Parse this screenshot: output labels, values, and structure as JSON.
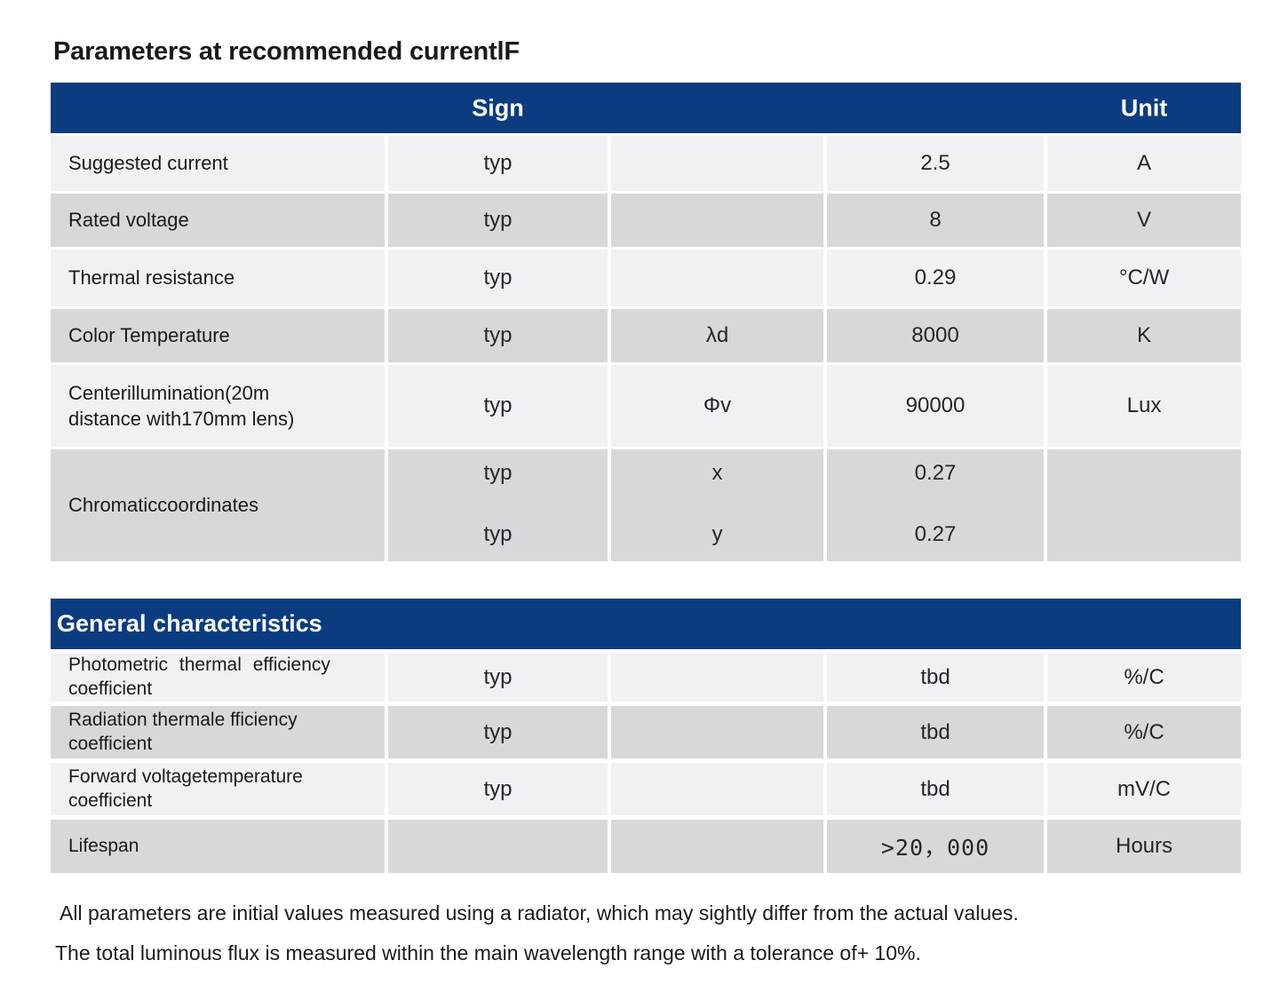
{
  "title": "Parameters at recommended currentlF",
  "colors": {
    "header_blue": "#0c3c80",
    "row_light": "#f1f1f4",
    "row_dark": "#d8d8da"
  },
  "table1": {
    "sign_header": "Sign",
    "unit_header": "Unit",
    "rows": [
      {
        "name": "Suggested current",
        "sign": "typ",
        "symbol": "",
        "value": "2.5",
        "unit": "A"
      },
      {
        "name": "Rated voltage",
        "sign": "typ",
        "symbol": "",
        "value": "8",
        "unit": "V"
      },
      {
        "name": "Thermal resistance",
        "sign": "typ",
        "symbol": "",
        "value": "0.29",
        "unit": "°C/W"
      },
      {
        "name": "Color Temperature",
        "sign": "typ",
        "symbol": "λd",
        "value": "8000",
        "unit": "K"
      },
      {
        "name": "Centerillumination(20m\ndistance with170mm lens)",
        "sign": "typ",
        "symbol": "Φv",
        "value": "90000",
        "unit": "Lux"
      },
      {
        "name": "Chromaticcoordinates",
        "unit": "",
        "sub": [
          {
            "sign": "typ",
            "symbol": "x",
            "value": "0.27"
          },
          {
            "sign": "typ",
            "symbol": "y",
            "value": "0.27"
          }
        ]
      }
    ]
  },
  "table2": {
    "header": "General characteristics",
    "rows": [
      {
        "name": "Photometric thermal efficiency\ncoefficient",
        "sign": "typ",
        "symbol": "",
        "value": "tbd",
        "unit": "%/C"
      },
      {
        "name": "Radiation thermale fficiency\ncoefficient",
        "sign": "typ",
        "symbol": "",
        "value": "tbd",
        "unit": "%/C"
      },
      {
        "name": "Forward voltagetemperature\ncoefficient",
        "sign": "typ",
        "symbol": "",
        "value": "tbd",
        "unit": "mV/C"
      },
      {
        "name": "Lifespan",
        "sign": "",
        "symbol": "",
        "value": ">20，000",
        "unit": "Hours"
      }
    ]
  },
  "footer": {
    "line1": "All parameters are initial values measured using a radiator, which may sightly differ from the actual values.",
    "line2": "The total luminous flux is measured within the main wavelength range with a tolerance of+ 10%."
  }
}
